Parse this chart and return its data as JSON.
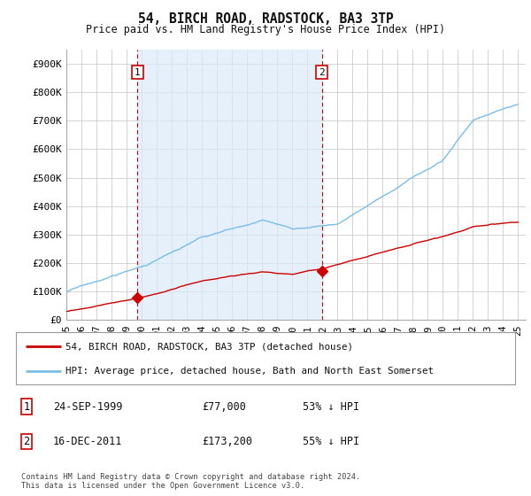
{
  "title": "54, BIRCH ROAD, RADSTOCK, BA3 3TP",
  "subtitle": "Price paid vs. HM Land Registry's House Price Index (HPI)",
  "ylabel_ticks": [
    "£0",
    "£100K",
    "£200K",
    "£300K",
    "£400K",
    "£500K",
    "£600K",
    "£700K",
    "£800K",
    "£900K"
  ],
  "ytick_values": [
    0,
    100000,
    200000,
    300000,
    400000,
    500000,
    600000,
    700000,
    800000,
    900000
  ],
  "ylim": [
    0,
    950000
  ],
  "xlim_start": 1995.3,
  "xlim_end": 2025.5,
  "hpi_color": "#7abde8",
  "hpi_fill_color": "#daeaf8",
  "price_color": "#cc0000",
  "marker1_x": 1999.73,
  "marker1_y": 77000,
  "marker2_x": 2011.96,
  "marker2_y": 173200,
  "marker1_label": "1",
  "marker2_label": "2",
  "vline1_x": 1999.73,
  "vline2_x": 2011.96,
  "legend_line1": "54, BIRCH ROAD, RADSTOCK, BA3 3TP (detached house)",
  "legend_line2": "HPI: Average price, detached house, Bath and North East Somerset",
  "table_row1": [
    "1",
    "24-SEP-1999",
    "£77,000",
    "53% ↓ HPI"
  ],
  "table_row2": [
    "2",
    "16-DEC-2011",
    "£173,200",
    "55% ↓ HPI"
  ],
  "footnote": "Contains HM Land Registry data © Crown copyright and database right 2024.\nThis data is licensed under the Open Government Licence v3.0.",
  "bg_color": "#ffffff",
  "grid_color": "#cccccc",
  "xticks": [
    1995,
    1996,
    1997,
    1998,
    1999,
    2000,
    2001,
    2002,
    2003,
    2004,
    2005,
    2006,
    2007,
    2008,
    2009,
    2010,
    2011,
    2012,
    2013,
    2014,
    2015,
    2016,
    2017,
    2018,
    2019,
    2020,
    2021,
    2022,
    2023,
    2024,
    2025
  ]
}
